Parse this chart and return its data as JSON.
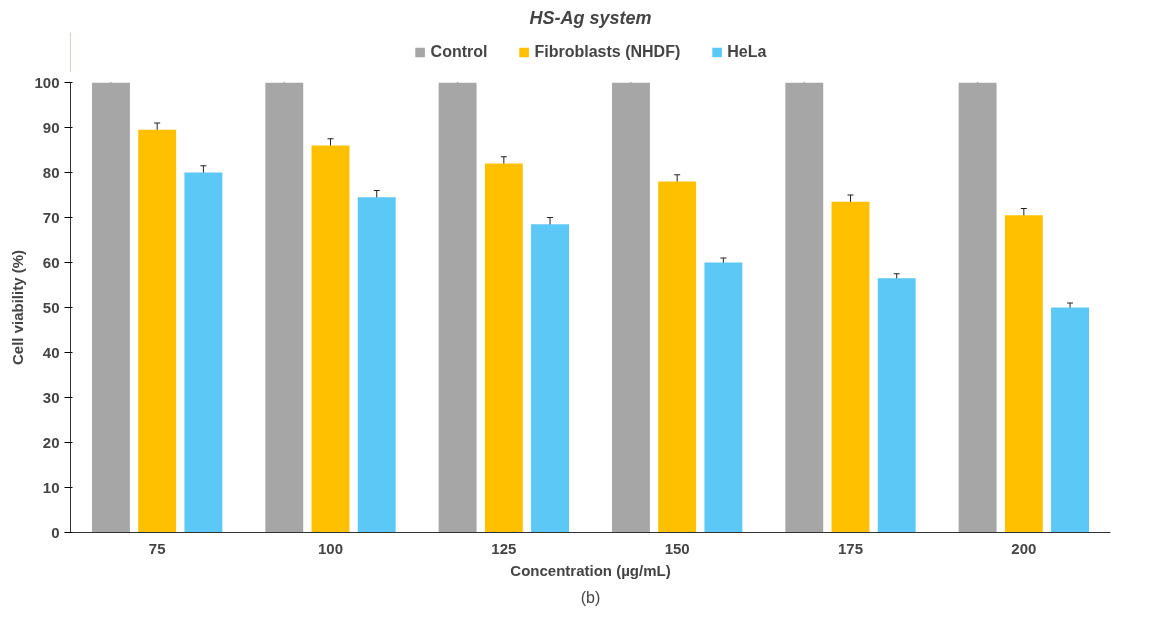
{
  "chart_data": {
    "type": "bar",
    "title": "HS-Ag system",
    "xlabel": "Concentration (µg/mL)",
    "ylabel": "Cell viability (%)",
    "categories": [
      "75",
      "100",
      "125",
      "150",
      "175",
      "200"
    ],
    "series": [
      {
        "name": "Control",
        "color": "#a6a6a6",
        "values": [
          100,
          100,
          100,
          100,
          100,
          100
        ],
        "errors": [
          1.5,
          1.5,
          1.5,
          1.5,
          1.5,
          1.5
        ]
      },
      {
        "name": "Fibroblasts (NHDF)",
        "color": "#ffc000",
        "values": [
          89.5,
          86,
          82,
          78,
          73.5,
          70.5
        ],
        "errors": [
          1.5,
          1.5,
          1.5,
          1.5,
          1.5,
          1.5
        ]
      },
      {
        "name": "HeLa",
        "color": "#5bc8f5",
        "values": [
          80,
          74.5,
          68.5,
          60,
          56.5,
          50
        ],
        "errors": [
          1.5,
          1.5,
          1.5,
          1,
          1,
          1
        ]
      }
    ],
    "ylim": [
      0,
      100
    ],
    "yticks": [
      0,
      10,
      20,
      30,
      40,
      50,
      60,
      70,
      80,
      90,
      100
    ],
    "grid": false,
    "legend": "top",
    "annotations": [
      "(b)"
    ]
  }
}
